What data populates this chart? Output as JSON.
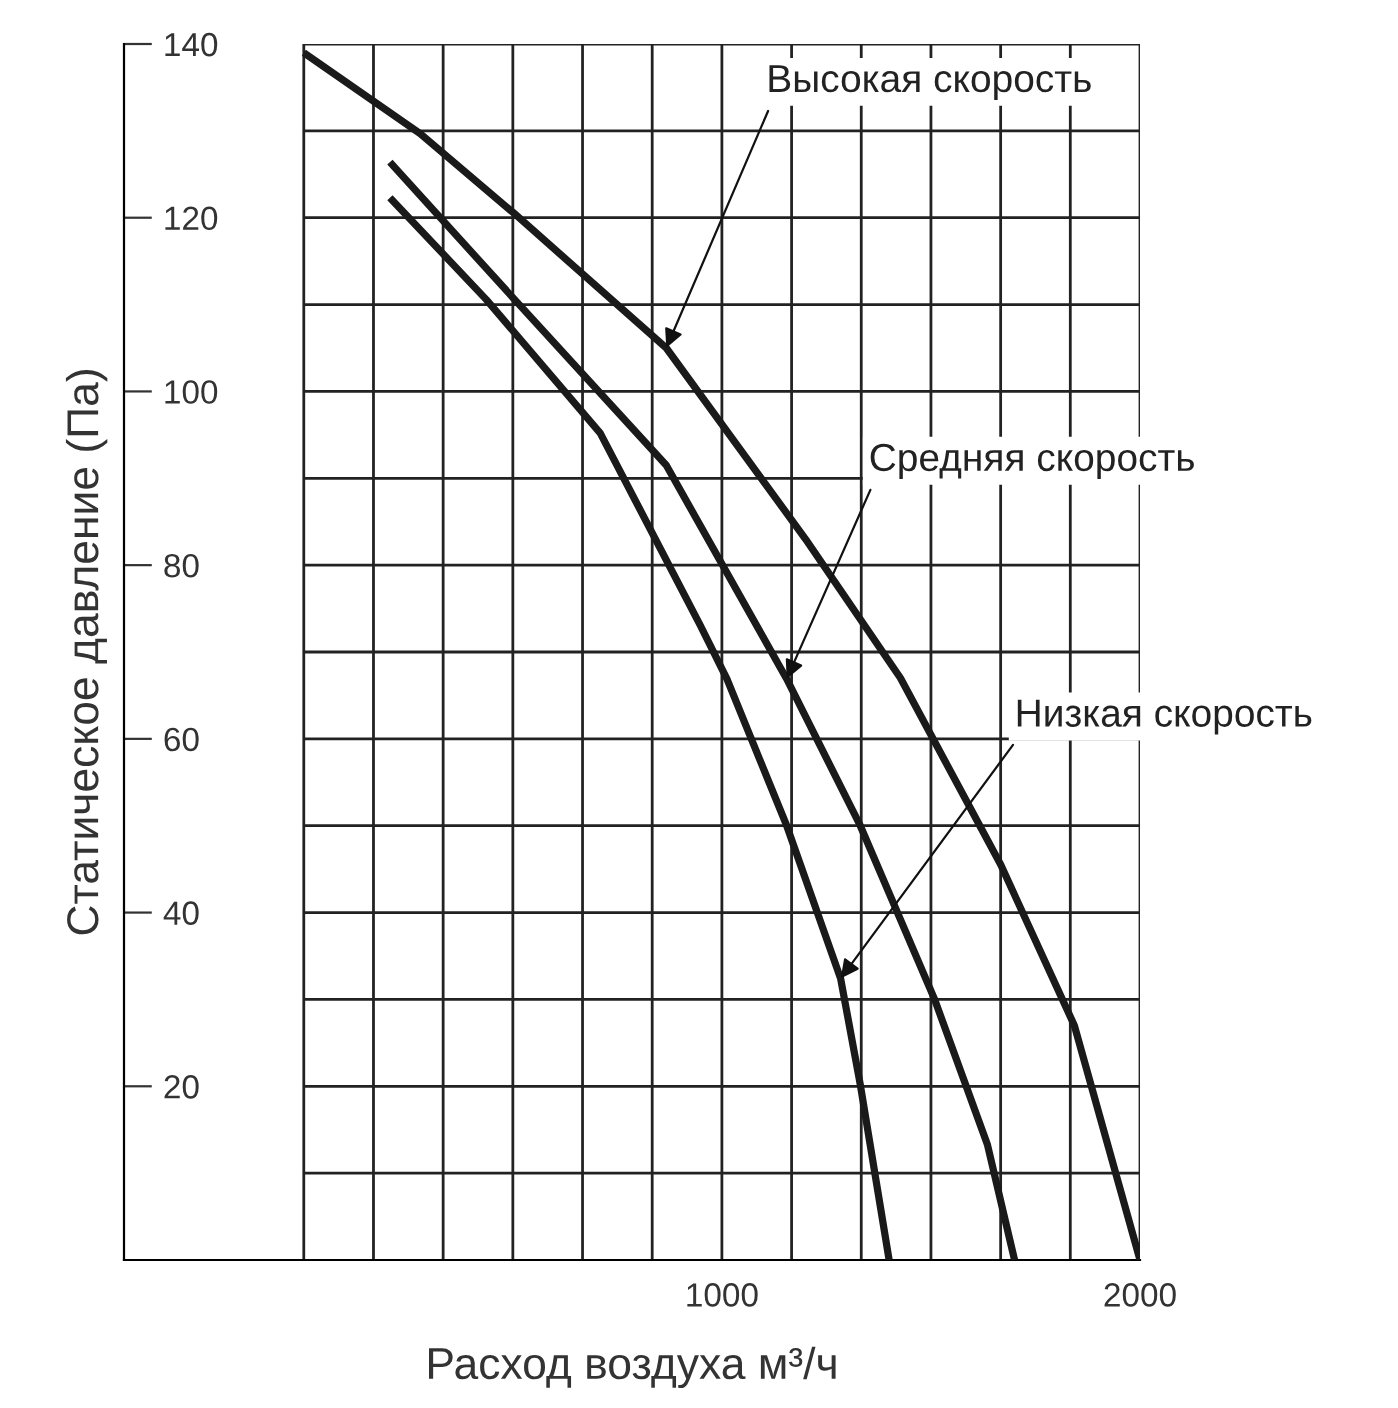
{
  "chart_data": {
    "type": "line",
    "xlabel": "Расход воздуха м³/ч",
    "ylabel": "Статическое давление (Па)",
    "xlim": [
      -430,
      2000
    ],
    "ylim": [
      0,
      140
    ],
    "xticks": [
      {
        "value": 0,
        "label": null
      },
      {
        "value": 166.7,
        "label": null
      },
      {
        "value": 333.3,
        "label": null
      },
      {
        "value": 500,
        "label": null
      },
      {
        "value": 666.7,
        "label": null
      },
      {
        "value": 833.3,
        "label": null
      },
      1000,
      {
        "value": 1166.7,
        "label": null
      },
      {
        "value": 1333.3,
        "label": null
      },
      {
        "value": 1500,
        "label": null
      },
      {
        "value": 1666.7,
        "label": null
      },
      {
        "value": 1833.3,
        "label": null
      },
      2000
    ],
    "yticks": [
      {
        "value": 10,
        "label": null
      },
      20,
      {
        "value": 30,
        "label": null
      },
      40,
      {
        "value": 50,
        "label": null
      },
      60,
      {
        "value": 70,
        "label": null
      },
      80,
      {
        "value": 90,
        "label": null
      },
      100,
      {
        "value": 110,
        "label": null
      },
      120,
      {
        "value": 130,
        "label": null
      },
      140
    ],
    "grid": true,
    "marker": "none",
    "line_style": "solid",
    "series": [
      {
        "color": "#1a1a1a",
        "x": [
          0,
          278,
          503,
          867,
          1200,
          1427,
          1667,
          1843,
          2000
        ],
        "values": [
          139,
          129.7,
          120.5,
          105,
          83,
          67,
          45.5,
          27,
          0
        ]
      },
      {
        "color": "#1a1a1a",
        "x": [
          206,
          517,
          867,
          1155,
          1331,
          1508,
          1635,
          1700
        ],
        "values": [
          126.4,
          109.9,
          91.5,
          66.9,
          50,
          30.1,
          13.3,
          0
        ]
      },
      {
        "color": "#1a1a1a",
        "x": [
          206,
          436,
          709,
          948,
          1012,
          1155,
          1284,
          1331,
          1400
        ],
        "values": [
          122.3,
          110.6,
          95.2,
          73.1,
          66.9,
          50,
          32.4,
          20.2,
          0
        ]
      }
    ],
    "annotations": [
      {
        "text": "Высокая скорость",
        "x": 867,
        "y": 105
      },
      {
        "text": "Средняя скорость",
        "x": 1155,
        "y": 66.9
      },
      {
        "text": "Низкая скорость",
        "x": 1284,
        "y": 32.4
      }
    ]
  }
}
